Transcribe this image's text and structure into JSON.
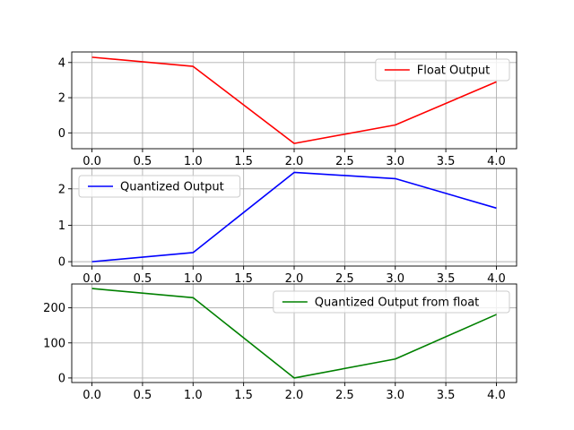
{
  "chart_data": [
    {
      "type": "line",
      "x": [
        0.0,
        1.0,
        2.0,
        3.0,
        4.0
      ],
      "xticks": [
        "0.0",
        "0.5",
        "1.0",
        "1.5",
        "2.0",
        "2.5",
        "3.0",
        "3.5",
        "4.0"
      ],
      "xlim": [
        -0.2,
        4.2
      ],
      "yticks": [
        "0",
        "2",
        "4"
      ],
      "ylim": [
        -0.9,
        4.6
      ],
      "grid": true,
      "legend_position": "upper-right",
      "series": [
        {
          "name": "Float Output",
          "color": "#ff0000",
          "values": [
            4.3,
            3.78,
            -0.6,
            0.45,
            2.9
          ]
        }
      ]
    },
    {
      "type": "line",
      "x": [
        0.0,
        1.0,
        2.0,
        3.0,
        4.0
      ],
      "xticks": [
        "0.0",
        "0.5",
        "1.0",
        "1.5",
        "2.0",
        "2.5",
        "3.0",
        "3.5",
        "4.0"
      ],
      "xlim": [
        -0.2,
        4.2
      ],
      "yticks": [
        "0",
        "1",
        "2"
      ],
      "ylim": [
        -0.12,
        2.56
      ],
      "grid": true,
      "legend_position": "upper-left",
      "series": [
        {
          "name": "Quantized Output",
          "color": "#0000ff",
          "values": [
            0.0,
            0.25,
            2.45,
            2.28,
            1.47
          ]
        }
      ]
    },
    {
      "type": "line",
      "x": [
        0.0,
        1.0,
        2.0,
        3.0,
        4.0
      ],
      "xticks": [
        "0.0",
        "0.5",
        "1.0",
        "1.5",
        "2.0",
        "2.5",
        "3.0",
        "3.5",
        "4.0"
      ],
      "xlim": [
        -0.2,
        4.2
      ],
      "yticks": [
        "0",
        "100",
        "200"
      ],
      "ylim": [
        -13,
        268
      ],
      "grid": true,
      "legend_position": "upper-right",
      "series": [
        {
          "name": "Quantized Output from float",
          "color": "#008000",
          "values": [
            255,
            229,
            0,
            54,
            181
          ]
        }
      ]
    }
  ]
}
